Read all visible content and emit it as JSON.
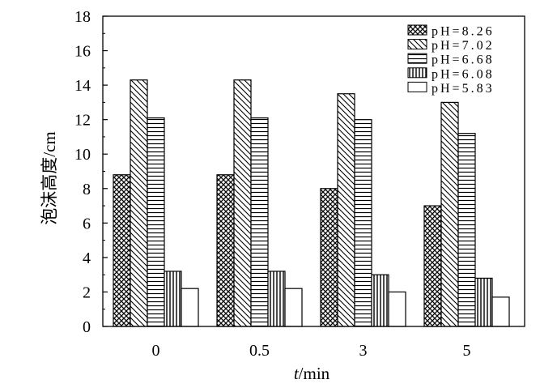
{
  "chart_data": {
    "type": "bar",
    "xlabel": "t/min",
    "ylabel": "泡沫高度/cm",
    "categories": [
      "0",
      "0.5",
      "3",
      "5"
    ],
    "series": [
      {
        "name": "pH=8.26",
        "values": [
          8.8,
          8.8,
          8.0,
          7.0
        ],
        "fill_pattern": "crosshatch"
      },
      {
        "name": "pH=7.02",
        "values": [
          14.3,
          14.3,
          13.5,
          13.0
        ],
        "fill_pattern": "diagonal-hatch"
      },
      {
        "name": "pH=6.68",
        "values": [
          12.1,
          12.1,
          12.0,
          11.2
        ],
        "fill_pattern": "horizontal-lines"
      },
      {
        "name": "pH=6.08",
        "values": [
          3.2,
          3.2,
          3.0,
          2.8
        ],
        "fill_pattern": "vertical-lines"
      },
      {
        "name": "pH=5.83",
        "values": [
          2.2,
          2.2,
          2.0,
          1.7
        ],
        "fill_pattern": "solid-white"
      }
    ],
    "ylim": [
      0,
      18
    ],
    "yticks": [
      0,
      2,
      4,
      6,
      8,
      10,
      12,
      14,
      16,
      18
    ],
    "legend": "top-right",
    "grid": false,
    "colors": {
      "stroke": "#000000",
      "background": "#ffffff"
    }
  }
}
